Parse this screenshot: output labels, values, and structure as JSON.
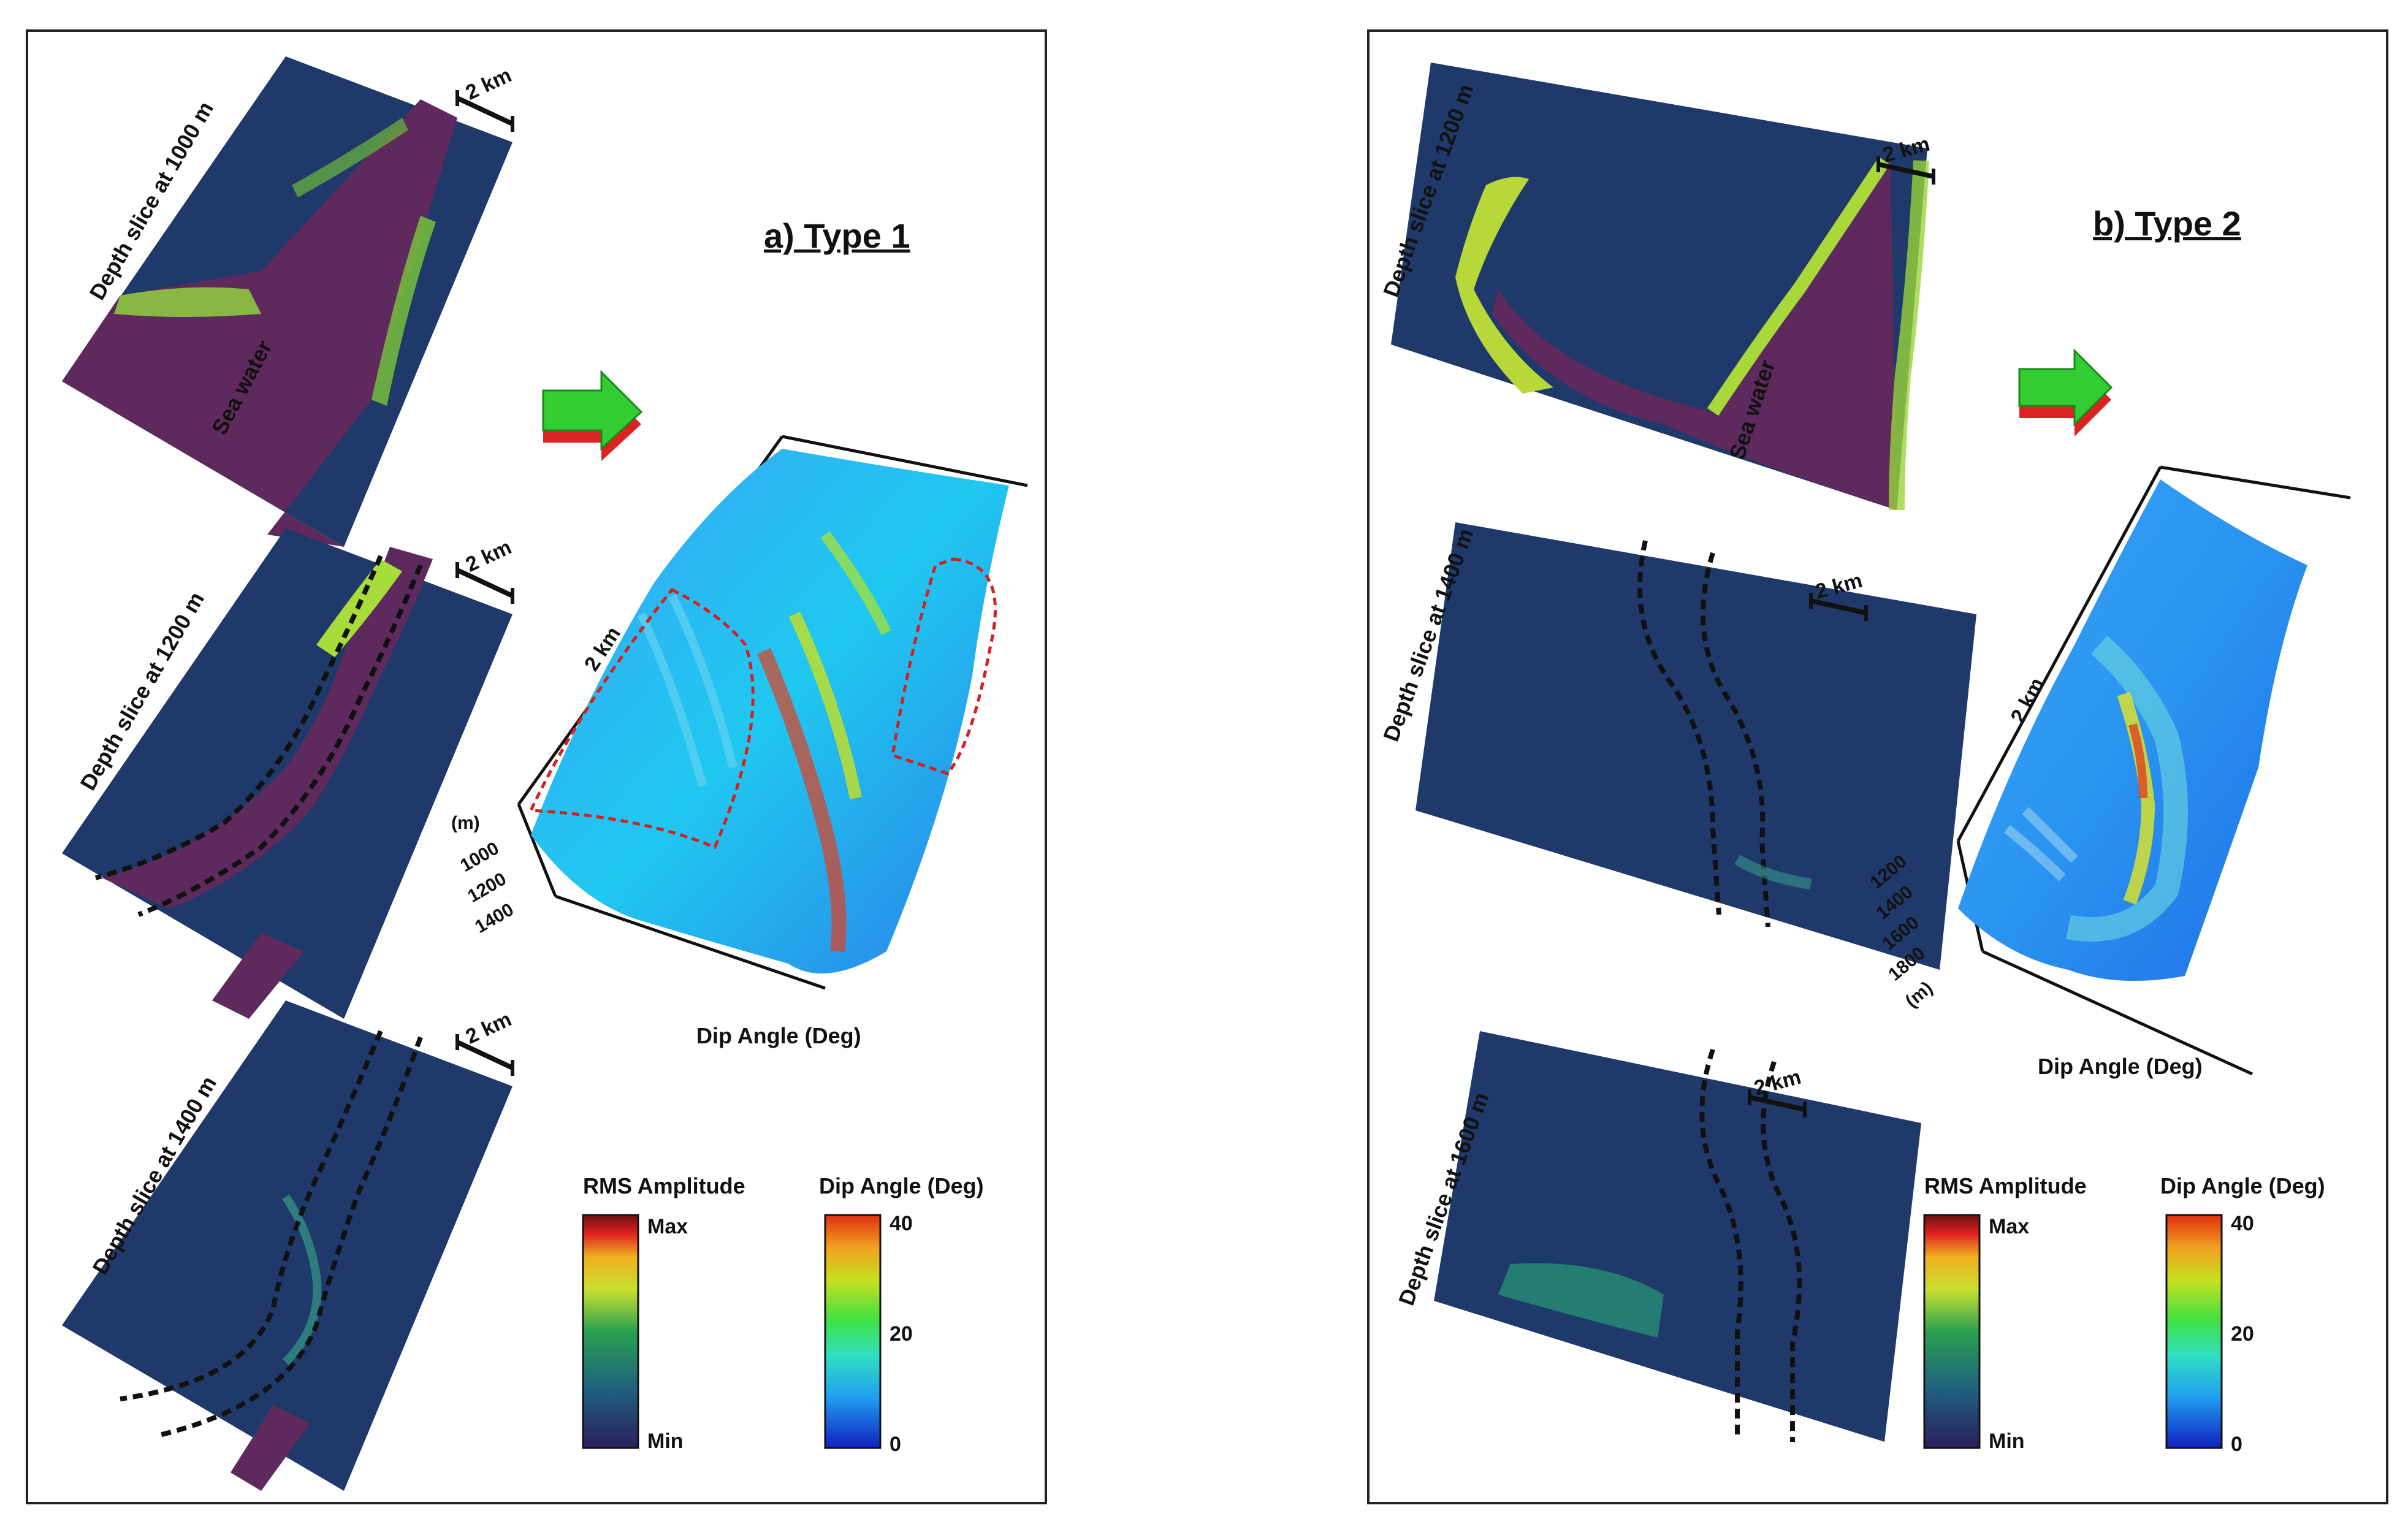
{
  "panel_a": {
    "title": "a) Type 1",
    "slices": [
      {
        "label": "Depth slice at 1000 m",
        "scale": "2 km",
        "water_label": "Sea water"
      },
      {
        "label": "Depth slice at 1200 m",
        "scale": "2 km"
      },
      {
        "label": "Depth slice at 1400 m",
        "scale": "2 km"
      }
    ],
    "surface": {
      "scale": "2 km",
      "axis_unit": "(m)",
      "depth_ticks": [
        "1000",
        "1200",
        "1400"
      ],
      "attribute_label": "Dip Angle (Deg)"
    },
    "rms_legend": {
      "title": "RMS Amplitude",
      "max": "Max",
      "min": "Min"
    },
    "dip_legend": {
      "title": "Dip Angle (Deg)",
      "ticks": [
        "40",
        "20",
        "0"
      ]
    }
  },
  "panel_b": {
    "title": "b) Type 2",
    "slices": [
      {
        "label": "Depth slice at 1200 m",
        "scale": "2 km",
        "water_label": "Sea water"
      },
      {
        "label": "Depth slice at 1400 m",
        "scale": "2 km"
      },
      {
        "label": "Depth slice at 1600 m",
        "scale": "2 km"
      }
    ],
    "surface": {
      "scale": "2 km",
      "axis_unit": "(m)",
      "depth_ticks": [
        "1200",
        "1400",
        "1600",
        "1800"
      ],
      "attribute_label": "Dip Angle (Deg)"
    },
    "rms_legend": {
      "title": "RMS Amplitude",
      "max": "Max",
      "min": "Min"
    },
    "dip_legend": {
      "title": "Dip Angle (Deg)",
      "ticks": [
        "40",
        "20",
        "0"
      ]
    }
  },
  "colors": {
    "sea_water": "#5e2a5e",
    "slice_base": "#1f3a6a",
    "highlight": "#9ad43a",
    "surface_base": "#2a8cf0",
    "dashed_line": "#111111",
    "red_outline": "#d42020",
    "arrow_top": "#33cc33",
    "arrow_bottom": "#dd2222"
  }
}
